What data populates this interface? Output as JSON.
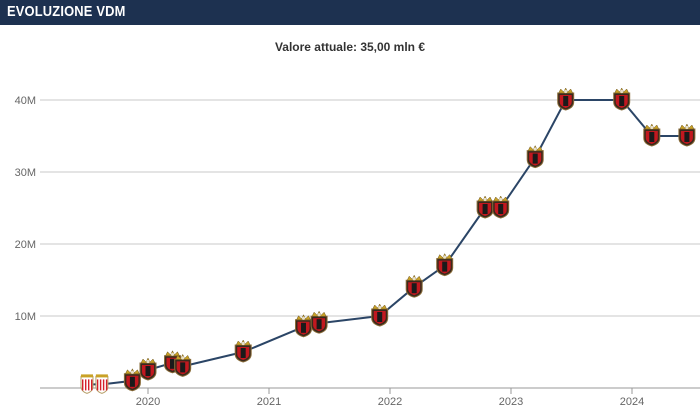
{
  "header": {
    "title": "EVOLUZIONE VDM"
  },
  "summary": {
    "current_value_text": "Valore attuale: 35,00 mln €"
  },
  "colors": {
    "header_bg": "#1d3150",
    "line": "#2b4566",
    "grid": "#c8c8c8",
    "tick_text": "#666666"
  },
  "chart_data": {
    "type": "line",
    "title": "",
    "xlabel": "",
    "ylabel": "",
    "x_ticks": [
      "2020",
      "2021",
      "2022",
      "2023",
      "2024"
    ],
    "y_ticks": [
      "10M",
      "20M",
      "30M",
      "40M"
    ],
    "ylim": [
      0,
      42
    ],
    "y_unit": "M €",
    "series": [
      {
        "points": [
          {
            "date": "2019-07-01",
            "value": 0.5,
            "club_icon": "monaco-crest-icon"
          },
          {
            "date": "2019-08-15",
            "value": 0.5,
            "club_icon": "monaco-crest-icon"
          },
          {
            "date": "2019-11-15",
            "value": 1.0,
            "club_icon": "nice-crest-icon"
          },
          {
            "date": "2020-01-01",
            "value": 2.5,
            "club_icon": "nice-crest-icon"
          },
          {
            "date": "2020-03-15",
            "value": 3.5,
            "club_icon": "nice-crest-icon"
          },
          {
            "date": "2020-04-15",
            "value": 3.0,
            "club_icon": "nice-crest-icon"
          },
          {
            "date": "2020-10-15",
            "value": 5.0,
            "club_icon": "nice-crest-icon"
          },
          {
            "date": "2021-04-15",
            "value": 8.5,
            "club_icon": "nice-crest-icon"
          },
          {
            "date": "2021-06-01",
            "value": 9.0,
            "club_icon": "nice-crest-icon"
          },
          {
            "date": "2021-12-01",
            "value": 10.0,
            "club_icon": "nice-crest-icon"
          },
          {
            "date": "2022-03-15",
            "value": 14.0,
            "club_icon": "nice-crest-icon"
          },
          {
            "date": "2022-06-15",
            "value": 17.0,
            "club_icon": "nice-crest-icon"
          },
          {
            "date": "2022-10-15",
            "value": 25.0,
            "club_icon": "nice-crest-icon"
          },
          {
            "date": "2022-12-01",
            "value": 25.0,
            "club_icon": "nice-crest-icon"
          },
          {
            "date": "2023-03-15",
            "value": 32.0,
            "club_icon": "nice-crest-icon"
          },
          {
            "date": "2023-06-15",
            "value": 40.0,
            "club_icon": "nice-crest-icon"
          },
          {
            "date": "2023-12-01",
            "value": 40.0,
            "club_icon": "nice-crest-icon"
          },
          {
            "date": "2024-03-01",
            "value": 35.0,
            "club_icon": "nice-crest-icon"
          },
          {
            "date": "2024-06-15",
            "value": 35.0,
            "club_icon": "nice-crest-icon"
          }
        ]
      }
    ],
    "grid": true
  }
}
